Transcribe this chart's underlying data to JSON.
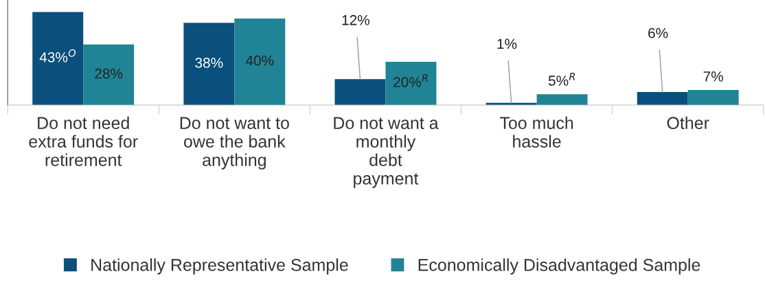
{
  "chart_data": {
    "type": "bar",
    "categories": [
      "Do not need\nextra funds for\nretirement",
      "Do not want to\nowe the bank\nanything",
      "Do not want a\nmonthly\ndebt\npayment",
      "Too much\nhassle",
      "Other"
    ],
    "series": [
      {
        "name": "Nationally Representative Sample",
        "color": "#0b4f7c",
        "values": [
          43,
          38,
          12,
          1,
          6
        ],
        "value_labels": [
          "43%$^{O}$",
          "38%",
          "12%",
          "1%",
          "6%"
        ]
      },
      {
        "name": "Economically Disadvantaged Sample",
        "color": "#218496",
        "values": [
          28,
          40,
          20,
          5,
          7
        ],
        "value_labels": [
          "28%",
          "40%",
          "20%$^{R}$",
          "5%$^{R}$",
          "7%"
        ]
      }
    ],
    "legend": "bottom",
    "grid": false
  }
}
